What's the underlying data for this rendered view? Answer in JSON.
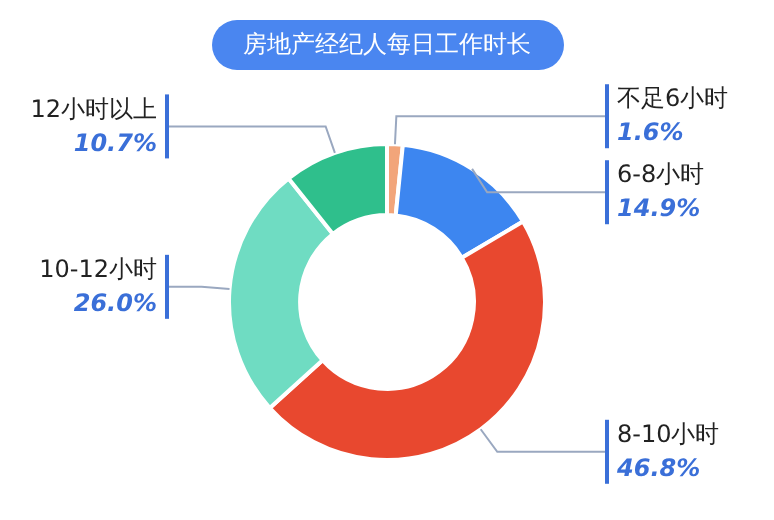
{
  "chart_data": {
    "type": "donut",
    "title": "房地产经纪人每日工作时长",
    "categories": [
      "不足6小时",
      "6-8小时",
      "8-10小时",
      "10-12小时",
      "12小时以上"
    ],
    "values": [
      1.6,
      14.9,
      46.8,
      26.0,
      10.7
    ],
    "value_labels": [
      "1.6%",
      "14.9%",
      "46.8%",
      "26.0%",
      "10.7%"
    ],
    "colors": [
      "#f2a57a",
      "#3d86f0",
      "#e8482f",
      "#6fdcc2",
      "#2fbf8c"
    ],
    "legend": false
  }
}
